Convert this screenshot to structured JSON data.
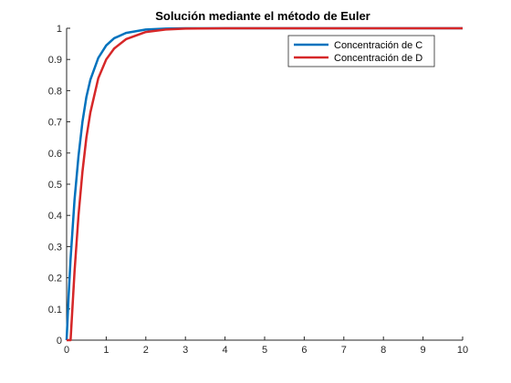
{
  "chart_data": {
    "type": "line",
    "title": "Solución mediante el método de Euler",
    "xlabel": "",
    "ylabel": "",
    "xlim": [
      0,
      10
    ],
    "ylim": [
      0,
      1
    ],
    "x_ticks": [
      "0",
      "1",
      "2",
      "3",
      "4",
      "5",
      "6",
      "7",
      "8",
      "9",
      "10"
    ],
    "y_ticks": [
      "0",
      "0.1",
      "0.2",
      "0.3",
      "0.4",
      "0.5",
      "0.6",
      "0.7",
      "0.8",
      "0.9",
      "1"
    ],
    "grid": false,
    "legend_position": "top-right",
    "series": [
      {
        "name": "Concentración de C",
        "color": "#0072BD",
        "x": [
          0,
          0.05,
          0.1,
          0.2,
          0.3,
          0.4,
          0.5,
          0.6,
          0.8,
          1.0,
          1.2,
          1.5,
          2.0,
          2.5,
          3.0,
          4.0,
          5.0,
          6.0,
          7.0,
          8.0,
          9.0,
          10.0
        ],
        "y": [
          0,
          0.14,
          0.26,
          0.45,
          0.59,
          0.7,
          0.78,
          0.835,
          0.905,
          0.945,
          0.968,
          0.985,
          0.996,
          0.999,
          1.0,
          1.0,
          1.0,
          1.0,
          1.0,
          1.0,
          1.0,
          1.0
        ]
      },
      {
        "name": "Concentración de D",
        "color": "#D62728",
        "x": [
          0,
          0.1,
          0.2,
          0.3,
          0.4,
          0.5,
          0.6,
          0.8,
          1.0,
          1.2,
          1.5,
          2.0,
          2.5,
          3.0,
          4.0,
          5.0,
          6.0,
          7.0,
          8.0,
          9.0,
          10.0
        ],
        "y": [
          0,
          0.0,
          0.22,
          0.4,
          0.54,
          0.65,
          0.73,
          0.84,
          0.9,
          0.935,
          0.965,
          0.988,
          0.996,
          0.999,
          1.0,
          1.0,
          1.0,
          1.0,
          1.0,
          1.0,
          1.0
        ]
      }
    ]
  }
}
